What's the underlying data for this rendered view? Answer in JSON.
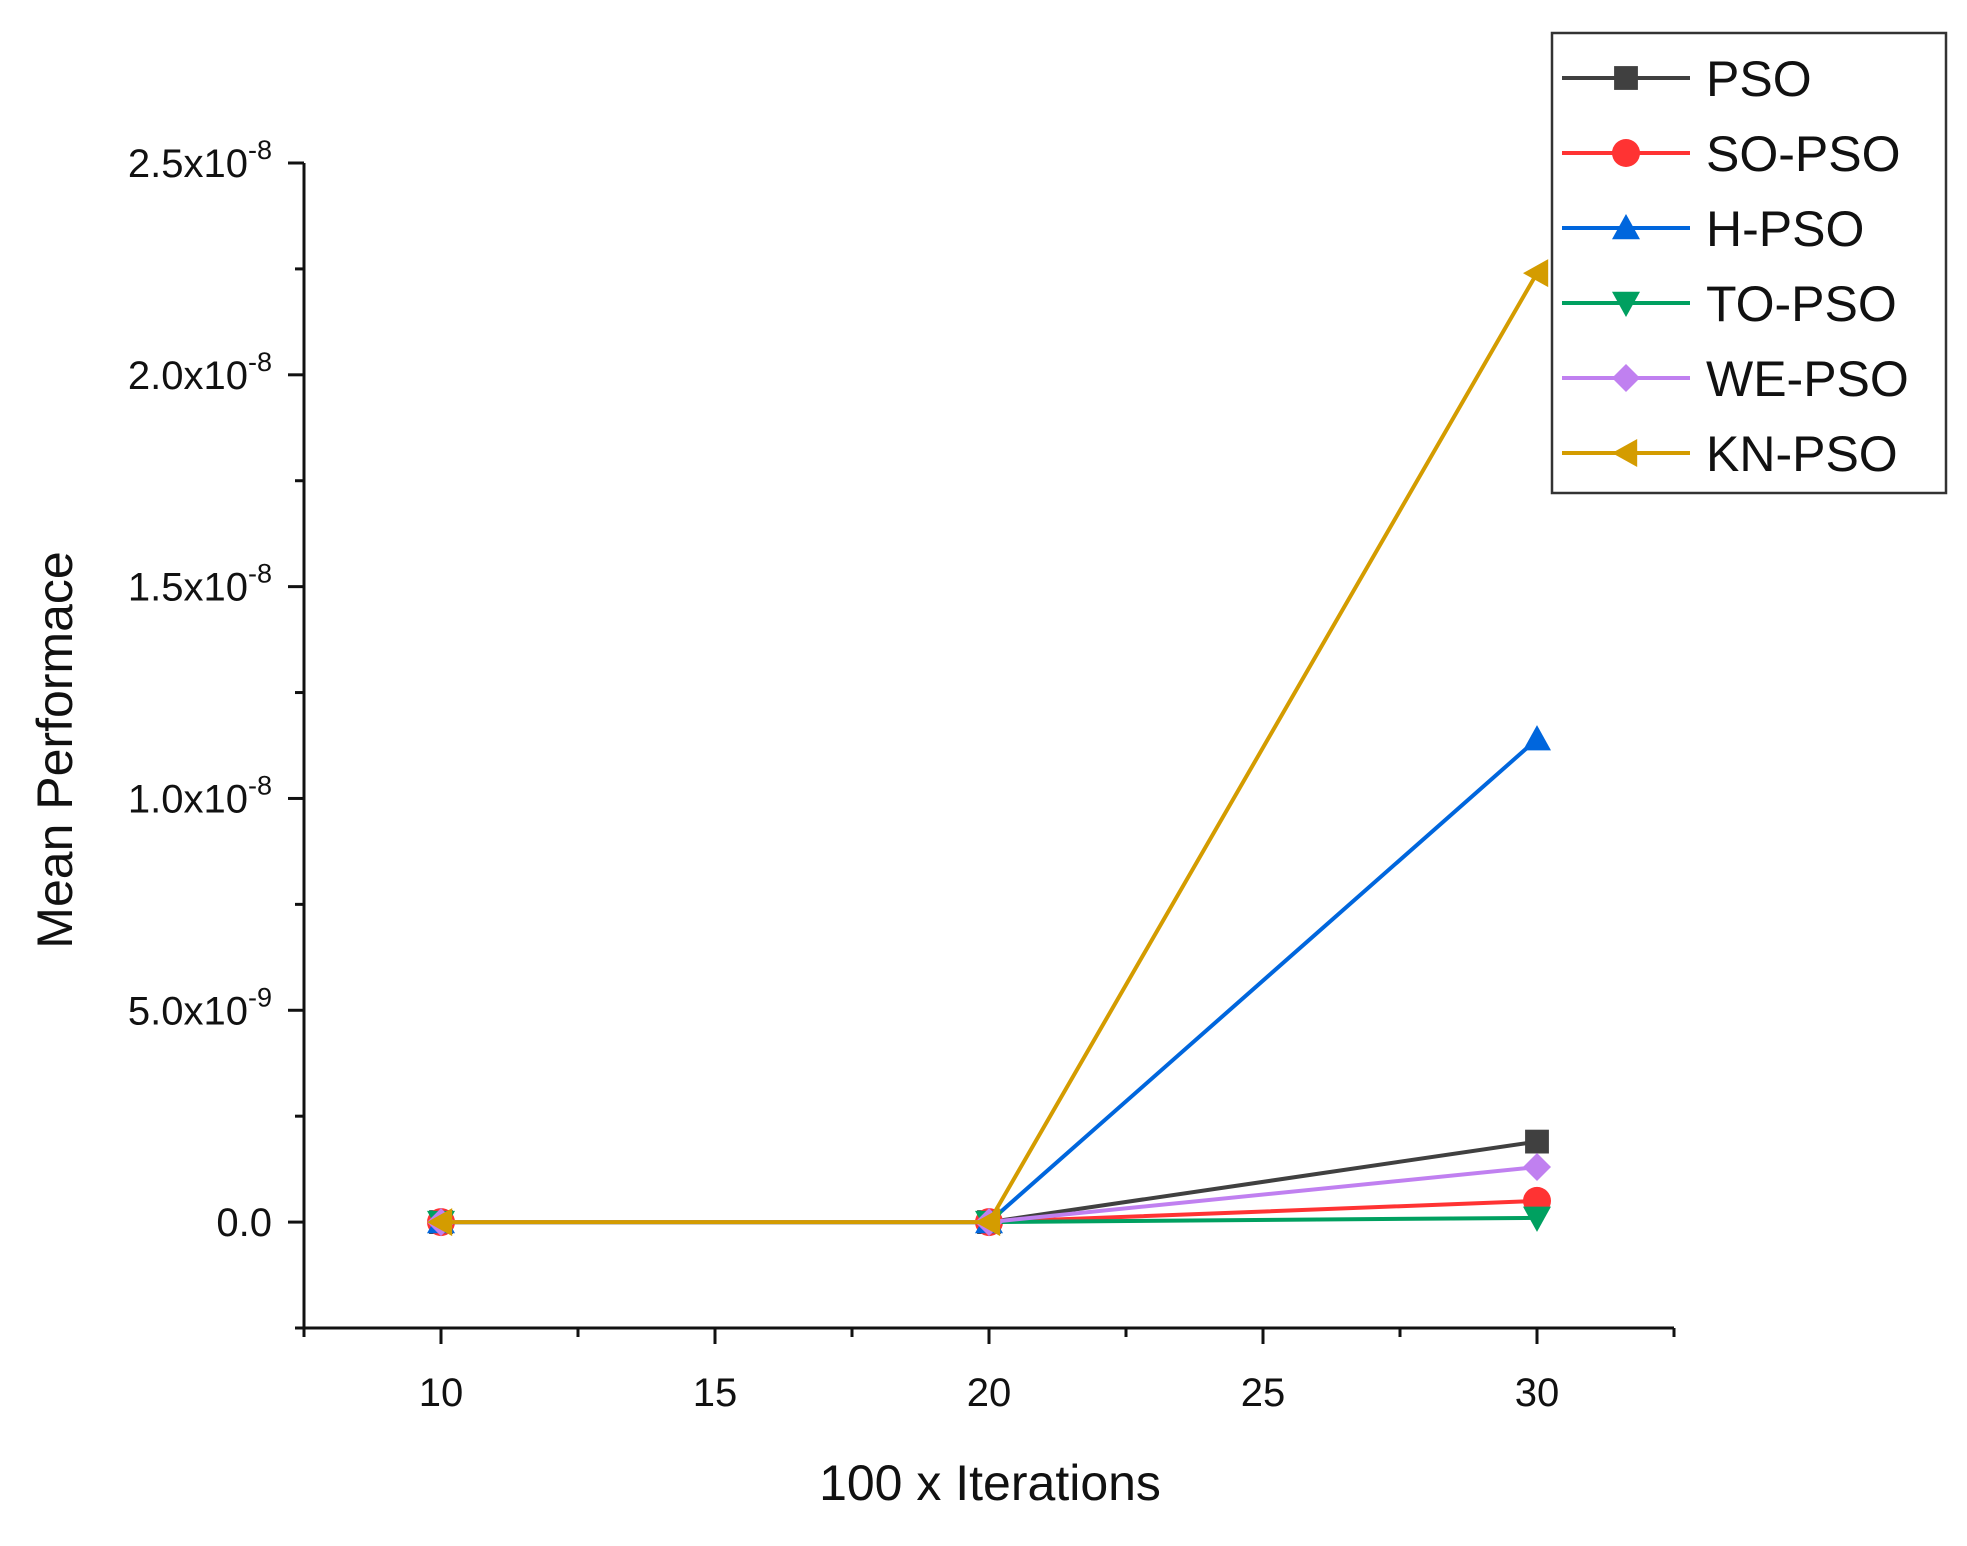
{
  "chart_data": {
    "type": "line",
    "title": "",
    "xlabel": "100 x Iterations",
    "ylabel": "Mean Performace",
    "x": [
      10,
      20,
      30
    ],
    "xlim": [
      7.5,
      32.5
    ],
    "ylim": [
      -2.5e-09,
      2.5e-08
    ],
    "xticks": [
      {
        "value": 10,
        "label": "10"
      },
      {
        "value": 15,
        "label": "15"
      },
      {
        "value": 20,
        "label": "20"
      },
      {
        "value": 25,
        "label": "25"
      },
      {
        "value": 30,
        "label": "30"
      }
    ],
    "yticks": [
      {
        "value": 0,
        "mant": "0.0",
        "exp": ""
      },
      {
        "value": 5e-09,
        "mant": "5.0x10",
        "exp": "-9"
      },
      {
        "value": 1e-08,
        "mant": "1.0x10",
        "exp": "-8"
      },
      {
        "value": 1.5e-08,
        "mant": "1.5x10",
        "exp": "-8"
      },
      {
        "value": 2e-08,
        "mant": "2.0x10",
        "exp": "-8"
      },
      {
        "value": 2.5e-08,
        "mant": "2.5x10",
        "exp": "-8"
      }
    ],
    "legend_position": "top-right",
    "grid": false,
    "series": [
      {
        "name": "PSO",
        "color": "#404040",
        "marker": "square",
        "values": [
          0,
          0,
          1.9e-09
        ]
      },
      {
        "name": "SO-PSO",
        "color": "#ff3333",
        "marker": "circle",
        "values": [
          0,
          0,
          5e-10
        ]
      },
      {
        "name": "H-PSO",
        "color": "#0066dd",
        "marker": "triangle-up",
        "values": [
          0,
          0,
          1.14e-08
        ]
      },
      {
        "name": "TO-PSO",
        "color": "#00a060",
        "marker": "triangle-down",
        "values": [
          0,
          0,
          1e-10
        ]
      },
      {
        "name": "WE-PSO",
        "color": "#c080f0",
        "marker": "diamond",
        "values": [
          0,
          0,
          1.3e-09
        ]
      },
      {
        "name": "KN-PSO",
        "color": "#d49c00",
        "marker": "triangle-left",
        "values": [
          0,
          0,
          2.24e-08
        ]
      }
    ]
  }
}
